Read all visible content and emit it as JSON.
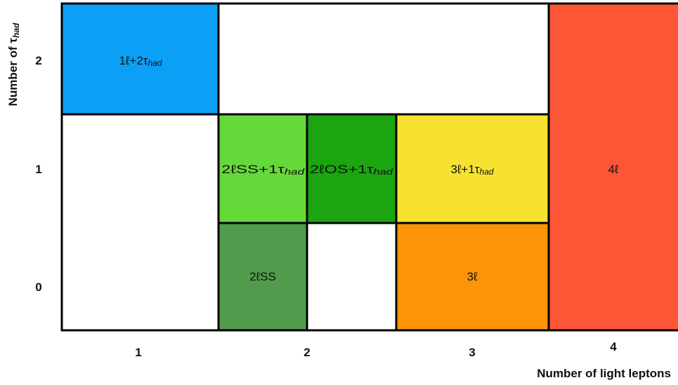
{
  "axes": {
    "x_title": "Number of light leptons",
    "y_title_main": "Number of τ",
    "y_title_sub": "had",
    "x_ticks": [
      "1",
      "2",
      "3",
      "4"
    ],
    "y_ticks": [
      "2",
      "1",
      "0"
    ]
  },
  "regions": [
    {
      "id": "1l2tau",
      "main": "1ℓ+2τ",
      "sub": "had",
      "color": "#0ba0f5"
    },
    {
      "id": "2lss1tau",
      "main": "2ℓSS+1τ",
      "sub": "had",
      "color": "#65d93a"
    },
    {
      "id": "2los1tau",
      "main": "2ℓOS+1τ",
      "sub": "had",
      "color": "#1aa511"
    },
    {
      "id": "3l1tau",
      "main": "3ℓ+1τ",
      "sub": "had",
      "color": "#f7e232"
    },
    {
      "id": "2lss",
      "main": "2ℓSS",
      "sub": "",
      "color": "#519c4c"
    },
    {
      "id": "3l",
      "main": "3ℓ",
      "sub": "",
      "color": "#fb9408"
    },
    {
      "id": "4l",
      "main": "4ℓ",
      "sub": "",
      "color": "#fd5637"
    }
  ]
}
